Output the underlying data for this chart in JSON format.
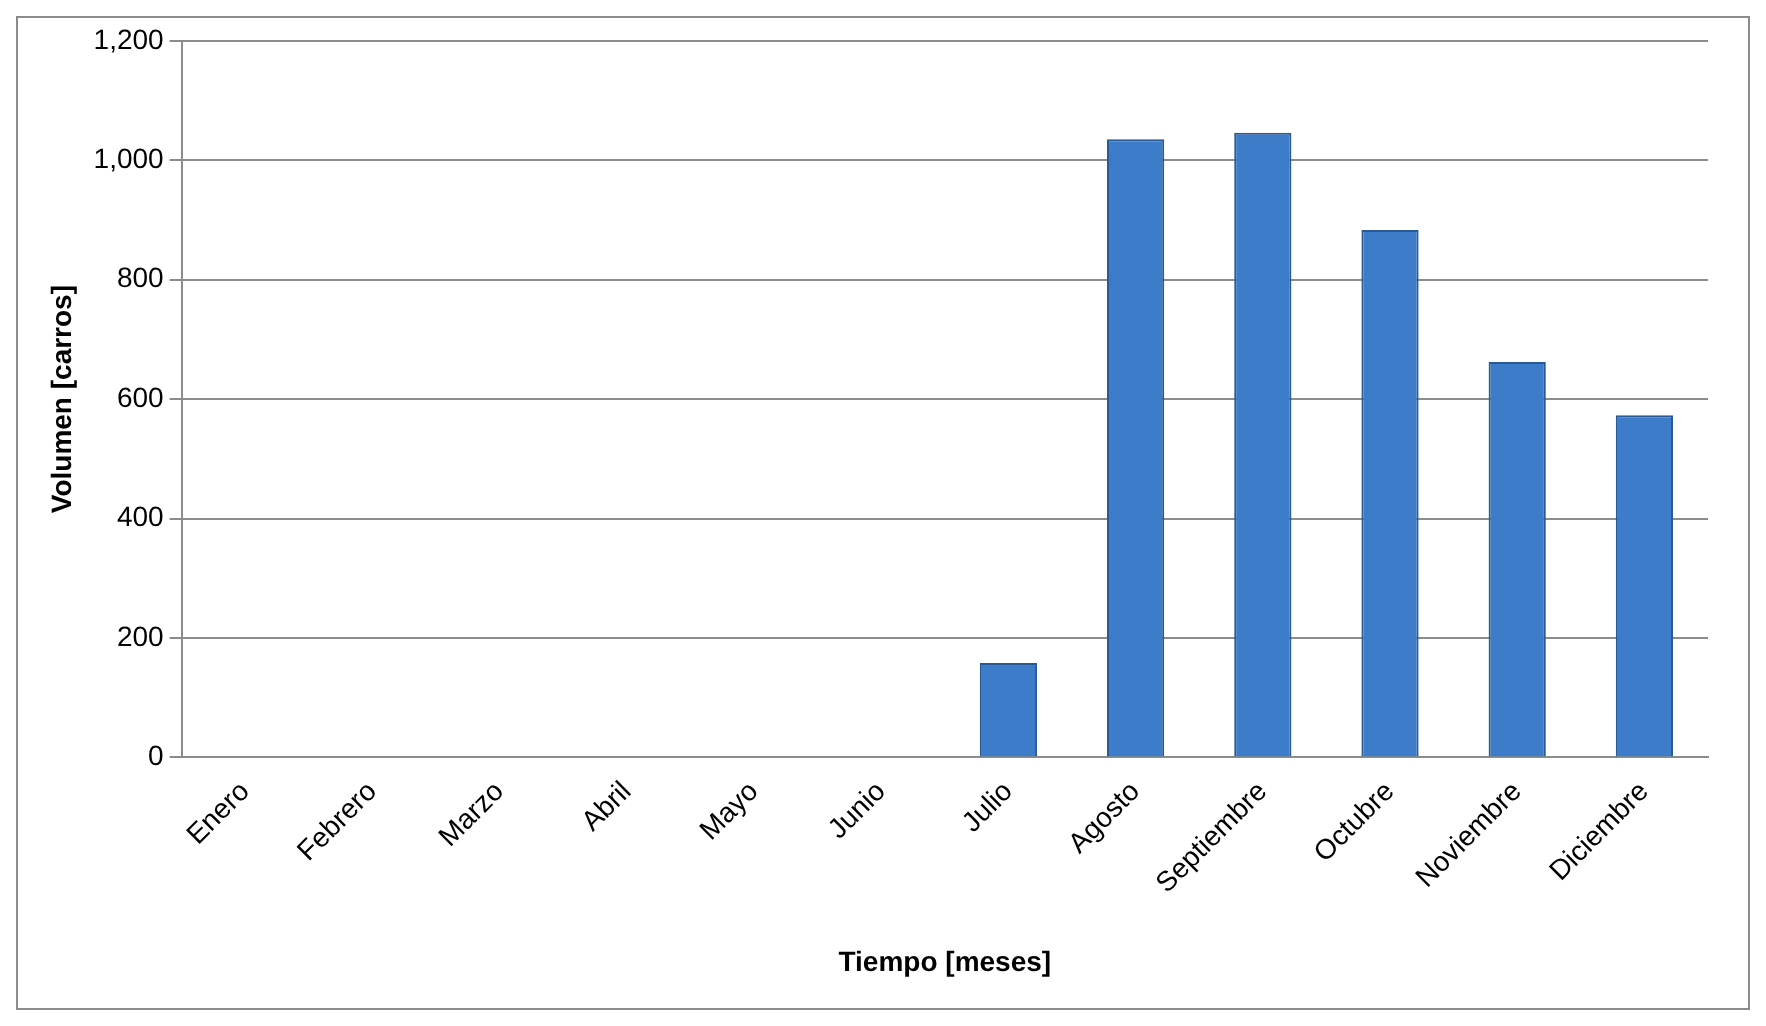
{
  "chart_data": {
    "type": "bar",
    "xlabel": "Tiempo [meses]",
    "ylabel": "Volumen [carros]",
    "categories": [
      "Enero",
      "Febrero",
      "Marzo",
      "Abril",
      "Mayo",
      "Junio",
      "Julio",
      "Agosto",
      "Septiembre",
      "Octubre",
      "Noviembre",
      "Diciembre"
    ],
    "values": [
      0,
      0,
      0,
      0,
      0,
      0,
      158,
      1035,
      1046,
      883,
      662,
      573
    ],
    "color": "#3d7cc9",
    "ylim": [
      0,
      1200
    ],
    "yticks": [
      {
        "value": 0,
        "label": "0"
      },
      {
        "value": 200,
        "label": "200"
      },
      {
        "value": 400,
        "label": "400"
      },
      {
        "value": 600,
        "label": "600"
      },
      {
        "value": 800,
        "label": "800"
      },
      {
        "value": 1000,
        "label": "1,000"
      },
      {
        "value": 1200,
        "label": "1,200"
      }
    ],
    "grid": "y",
    "legend": false
  }
}
